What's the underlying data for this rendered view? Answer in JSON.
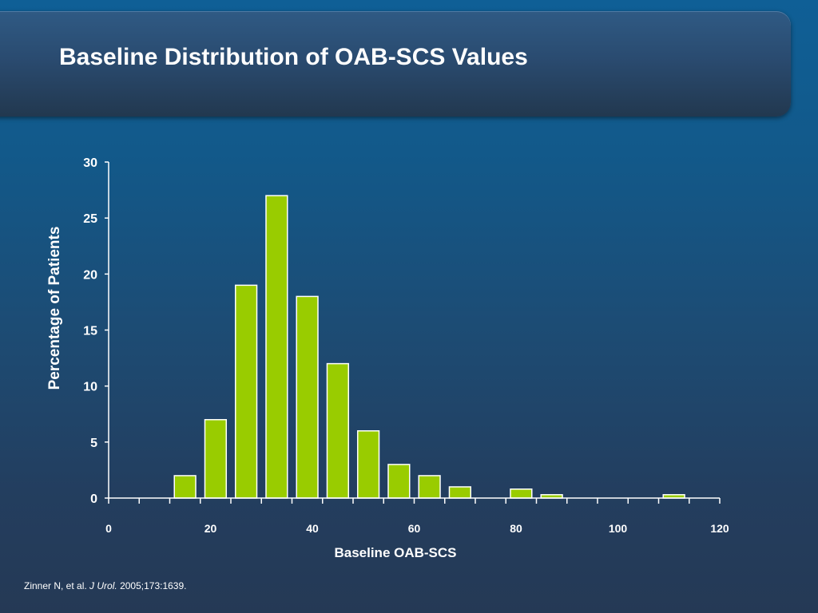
{
  "slide": {
    "title": "Baseline Distribution of OAB-SCS Values",
    "citation": {
      "authors": "Zinner N, et al.",
      "journal": "J Urol.",
      "details": "2005;173:1639."
    }
  },
  "colors": {
    "bar_fill": "#99cc00",
    "bar_stroke": "#ffffff",
    "axis": "#ffffff",
    "text": "#ffffff"
  },
  "chart_data": {
    "type": "bar",
    "title": "",
    "xlabel": "Baseline OAB-SCS",
    "ylabel": "Percentage of Patients",
    "xlim": [
      0,
      120
    ],
    "ylim": [
      0,
      30
    ],
    "x_ticks": [
      "0",
      "20",
      "40",
      "60",
      "80",
      "100",
      "120"
    ],
    "y_ticks": [
      "0",
      "5",
      "10",
      "15",
      "20",
      "25",
      "30"
    ],
    "grid": false,
    "legend": "none",
    "bins": [
      {
        "start": 0,
        "end": 6,
        "value": 0
      },
      {
        "start": 6,
        "end": 12,
        "value": 0
      },
      {
        "start": 12,
        "end": 18,
        "value": 2
      },
      {
        "start": 18,
        "end": 24,
        "value": 7
      },
      {
        "start": 24,
        "end": 30,
        "value": 19
      },
      {
        "start": 30,
        "end": 36,
        "value": 27
      },
      {
        "start": 36,
        "end": 42,
        "value": 18
      },
      {
        "start": 42,
        "end": 48,
        "value": 12
      },
      {
        "start": 48,
        "end": 54,
        "value": 6
      },
      {
        "start": 54,
        "end": 60,
        "value": 3
      },
      {
        "start": 60,
        "end": 66,
        "value": 2
      },
      {
        "start": 66,
        "end": 72,
        "value": 1
      },
      {
        "start": 72,
        "end": 78,
        "value": 0
      },
      {
        "start": 78,
        "end": 84,
        "value": 0.8
      },
      {
        "start": 84,
        "end": 90,
        "value": 0.3
      },
      {
        "start": 90,
        "end": 96,
        "value": 0
      },
      {
        "start": 96,
        "end": 102,
        "value": 0
      },
      {
        "start": 102,
        "end": 108,
        "value": 0
      },
      {
        "start": 108,
        "end": 114,
        "value": 0.3
      },
      {
        "start": 114,
        "end": 120,
        "value": 0
      }
    ]
  }
}
